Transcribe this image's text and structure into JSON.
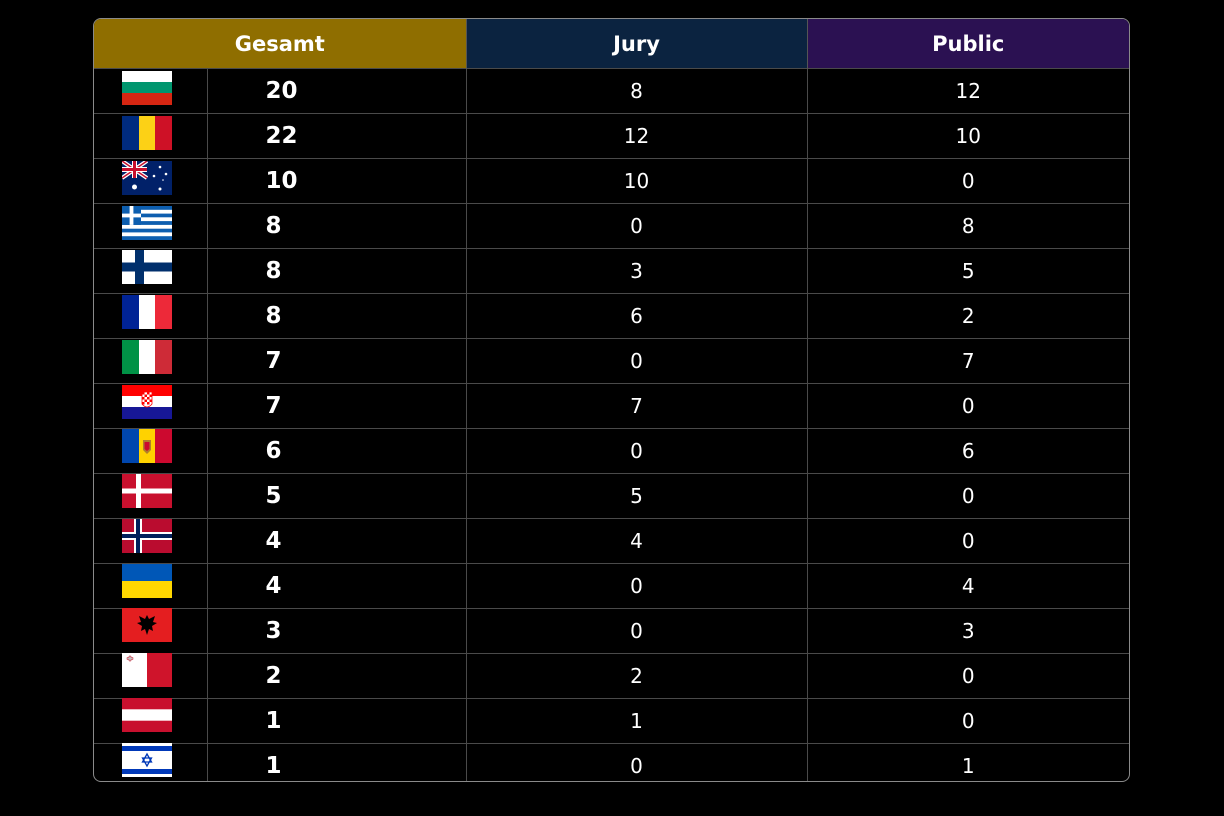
{
  "table": {
    "header": [
      "Gesamt",
      "Jury",
      "Public"
    ],
    "rows": [
      [
        20,
        8,
        12
      ],
      [
        22,
        12,
        10
      ],
      [
        10,
        10,
        0
      ],
      [
        8,
        0,
        8
      ],
      [
        8,
        3,
        5
      ],
      [
        8,
        6,
        2
      ],
      [
        7,
        0,
        7
      ],
      [
        7,
        7,
        0
      ],
      [
        6,
        0,
        6
      ],
      [
        5,
        5,
        0
      ],
      [
        4,
        4,
        0
      ],
      [
        4,
        0,
        4
      ],
      [
        3,
        0,
        3
      ],
      [
        2,
        2,
        0
      ],
      [
        1,
        1,
        0
      ],
      [
        1,
        0,
        1
      ]
    ]
  }
}
